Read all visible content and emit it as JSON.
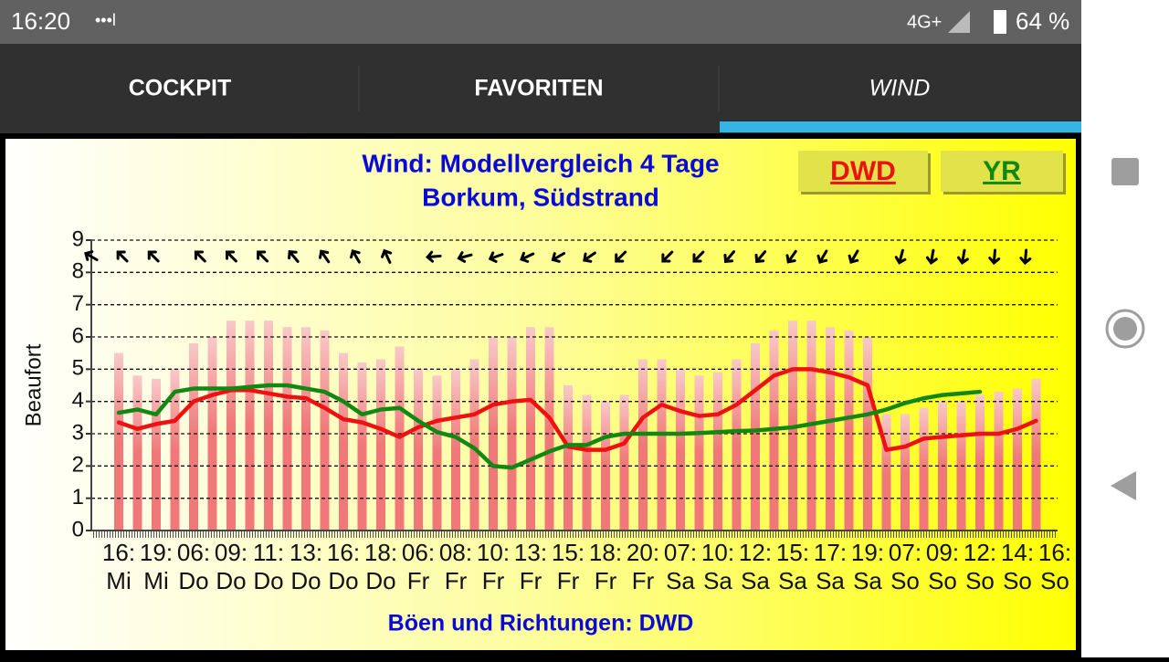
{
  "status_bar": {
    "time": "16:20",
    "indicators": "•••l",
    "network": "4G+",
    "battery": "64 %"
  },
  "tabs": [
    "COCKPIT",
    "FAVORITEN",
    "WIND"
  ],
  "chart_data": {
    "type": "line",
    "title": "Wind: Modellvergleich 4 Tage",
    "subtitle": "Borkum, Südstrand",
    "ylabel": "Beaufort",
    "footer": "Böen und Richtungen: DWD",
    "categories": [
      "16:",
      null,
      "19:",
      null,
      "06:",
      null,
      "09:",
      null,
      "11:",
      null,
      "13:",
      null,
      "16:",
      null,
      "18:",
      null,
      "06:",
      null,
      "08:",
      null,
      "10:",
      null,
      "13:",
      null,
      "15:",
      null,
      "18:",
      null,
      "20:",
      null,
      "07:",
      null,
      "10:",
      null,
      "12:",
      null,
      "15:",
      null,
      "17:",
      null,
      "19:",
      null,
      "07:",
      null,
      "09:",
      null,
      "12:",
      null,
      "14:",
      null,
      "16:"
    ],
    "category_days": [
      "Mi",
      null,
      "Mi",
      null,
      "Do",
      null,
      "Do",
      null,
      "Do",
      null,
      "Do",
      null,
      "Do",
      null,
      "Do",
      null,
      "Fr",
      null,
      "Fr",
      null,
      "Fr",
      null,
      "Fr",
      null,
      "Fr",
      null,
      "Fr",
      null,
      "Fr",
      null,
      "Sa",
      null,
      "Sa",
      null,
      "Sa",
      null,
      "Sa",
      null,
      "Sa",
      null,
      "Sa",
      null,
      "So",
      null,
      "So",
      null,
      "So",
      null,
      "So",
      null,
      "So"
    ],
    "ylim": [
      0,
      9
    ],
    "yticks": [
      0,
      1,
      2,
      3,
      4,
      5,
      6,
      7,
      8,
      9
    ],
    "grid": true,
    "series": [
      {
        "name": "DWD",
        "color": "#ee1111",
        "values": [
          3.35,
          3.15,
          3.3,
          3.4,
          4.0,
          4.2,
          4.35,
          4.35,
          4.25,
          4.15,
          4.1,
          3.8,
          3.45,
          3.35,
          3.15,
          2.9,
          3.2,
          3.4,
          3.5,
          3.6,
          3.9,
          4.0,
          4.05,
          3.5,
          2.6,
          2.5,
          2.5,
          2.7,
          3.5,
          3.9,
          3.7,
          3.55,
          3.6,
          3.9,
          4.35,
          4.8,
          5.0,
          5.0,
          4.9,
          4.75,
          4.5,
          2.5,
          2.6,
          2.85,
          2.9,
          2.95,
          3.0,
          3.0,
          3.15,
          3.4,
          null
        ]
      },
      {
        "name": "YR",
        "color": "#118811",
        "values": [
          3.65,
          3.75,
          3.6,
          4.3,
          4.4,
          4.4,
          4.4,
          4.45,
          4.5,
          4.5,
          4.4,
          4.3,
          4.0,
          3.6,
          3.75,
          3.8,
          3.4,
          3.05,
          2.9,
          2.55,
          2.0,
          1.95,
          2.2,
          2.45,
          2.65,
          2.65,
          2.9,
          3.0,
          3.0,
          3.0,
          3.0,
          3.02,
          3.05,
          3.08,
          3.1,
          3.15,
          3.2,
          3.3,
          3.4,
          3.5,
          3.6,
          3.75,
          3.95,
          4.1,
          4.2,
          4.25,
          4.3,
          null,
          null,
          null,
          null
        ]
      }
    ],
    "gusts": {
      "color": "#f07878",
      "values": [
        5.5,
        4.8,
        4.7,
        5.0,
        5.8,
        6.0,
        6.5,
        6.5,
        6.5,
        6.3,
        6.3,
        6.2,
        5.5,
        5.2,
        5.3,
        5.7,
        5.0,
        4.8,
        5.0,
        5.3,
        6.0,
        6.0,
        6.3,
        6.3,
        4.5,
        4.2,
        4.0,
        4.2,
        5.3,
        5.3,
        5.0,
        4.8,
        4.9,
        5.3,
        5.8,
        6.2,
        6.5,
        6.5,
        6.3,
        6.2,
        6.0,
        3.6,
        3.6,
        3.8,
        4.0,
        4.0,
        4.2,
        4.3,
        4.4,
        4.7,
        null
      ]
    },
    "directions": [
      300,
      null,
      315,
      null,
      315,
      null,
      null,
      315,
      null,
      315,
      null,
      315,
      null,
      320,
      null,
      325,
      null,
      330,
      null,
      335,
      null,
      null,
      265,
      null,
      255,
      null,
      250,
      null,
      245,
      null,
      240,
      null,
      235,
      null,
      225,
      null,
      null,
      225,
      null,
      225,
      null,
      220,
      null,
      220,
      null,
      215,
      null,
      210,
      null,
      210,
      null,
      null,
      195,
      null,
      190,
      null,
      190,
      null,
      185,
      null,
      185
    ]
  }
}
